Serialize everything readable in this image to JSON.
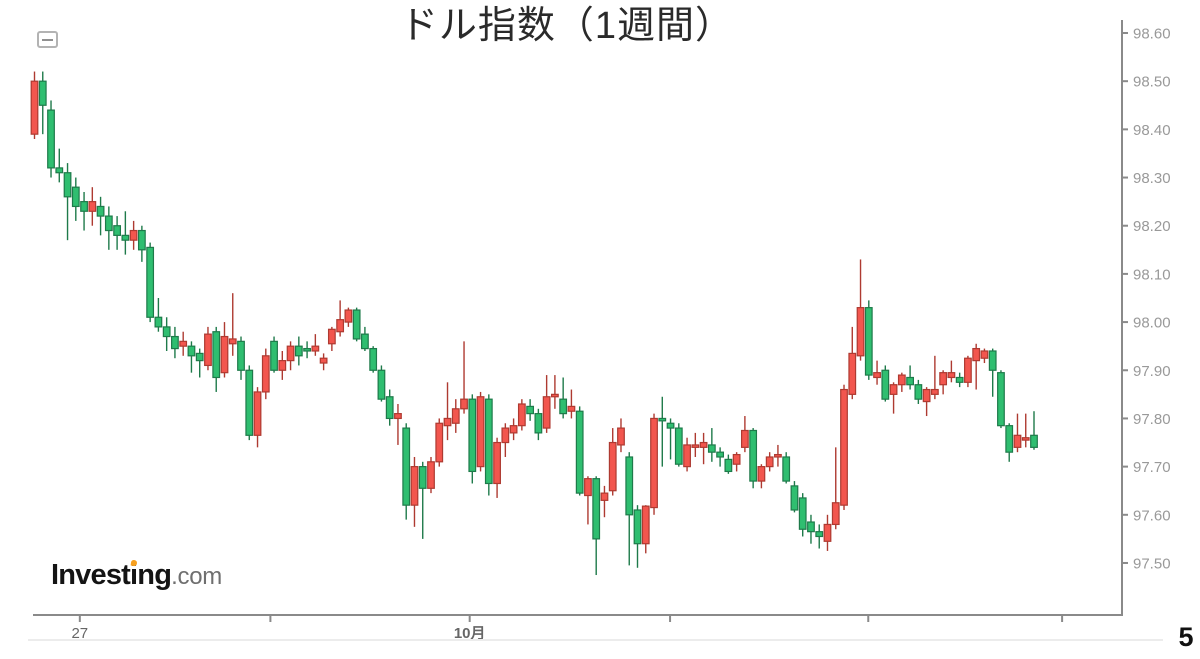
{
  "header": {
    "title": "ドル指数（1週間）"
  },
  "icons": {
    "collapse": "minus-icon"
  },
  "branding": {
    "logo": {
      "part1": "Invest",
      "accent_letter": "i",
      "part2": "ng",
      "tld": ".com"
    },
    "accent_color": "#F7A01E"
  },
  "page": {
    "number": "5"
  },
  "chart_data": {
    "type": "candlestick",
    "title": "ドル指数（1週間）",
    "candle_convention": "red = bullish (close > open), green = bearish (close < open) — Japanese color convention",
    "legend": "none",
    "grid": "off",
    "y_axis": {
      "side": "right",
      "tick_values": [
        98.6,
        98.5,
        98.4,
        98.3,
        98.2,
        98.1,
        98.0,
        97.9,
        97.8,
        97.7,
        97.6,
        97.5
      ],
      "range": [
        97.39,
        98.63
      ]
    },
    "x_axis": {
      "ticks": [
        {
          "pos": 0.043,
          "label": "27",
          "bold": false
        },
        {
          "pos": 0.218,
          "label": "",
          "bold": false
        },
        {
          "pos": 0.401,
          "label": "10月",
          "bold": true
        },
        {
          "pos": 0.585,
          "label": "",
          "bold": false
        },
        {
          "pos": 0.767,
          "label": "",
          "bold": false
        },
        {
          "pos": 0.945,
          "label": "",
          "bold": false
        }
      ]
    },
    "colors": {
      "up_fill": "#F2564E",
      "up_stroke": "#AE3A31",
      "down_fill": "#2FBE70",
      "down_stroke": "#1E7A4A",
      "axis": "#8A8A8A",
      "y_tick_label": "#999999",
      "x_tick_label": "#666666",
      "separator": "#ECECEC"
    },
    "candles_ohlc": [
      [
        98.39,
        98.52,
        98.38,
        98.5
      ],
      [
        98.5,
        98.52,
        98.39,
        98.45
      ],
      [
        98.44,
        98.46,
        98.3,
        98.32
      ],
      [
        98.32,
        98.36,
        98.29,
        98.31
      ],
      [
        98.31,
        98.33,
        98.17,
        98.26
      ],
      [
        98.28,
        98.3,
        98.21,
        98.24
      ],
      [
        98.25,
        98.27,
        98.19,
        98.23
      ],
      [
        98.23,
        98.28,
        98.2,
        98.25
      ],
      [
        98.24,
        98.26,
        98.18,
        98.22
      ],
      [
        98.22,
        98.24,
        98.15,
        98.19
      ],
      [
        98.2,
        98.22,
        98.15,
        98.18
      ],
      [
        98.18,
        98.23,
        98.14,
        98.17
      ],
      [
        98.17,
        98.21,
        98.15,
        98.19
      ],
      [
        98.19,
        98.2,
        98.125,
        98.15
      ],
      [
        98.155,
        98.165,
        98.0,
        98.01
      ],
      [
        98.01,
        98.05,
        97.98,
        97.99
      ],
      [
        97.99,
        98.01,
        97.94,
        97.97
      ],
      [
        97.97,
        97.99,
        97.925,
        97.945
      ],
      [
        97.95,
        97.98,
        97.93,
        97.96
      ],
      [
        97.95,
        97.96,
        97.895,
        97.93
      ],
      [
        97.935,
        97.945,
        97.885,
        97.92
      ],
      [
        97.91,
        97.99,
        97.9,
        97.975
      ],
      [
        97.98,
        97.99,
        97.855,
        97.885
      ],
      [
        97.895,
        98.0,
        97.885,
        97.97
      ],
      [
        97.955,
        98.06,
        97.93,
        97.965
      ],
      [
        97.96,
        97.97,
        97.88,
        97.9
      ],
      [
        97.9,
        97.91,
        97.755,
        97.765
      ],
      [
        97.765,
        97.865,
        97.74,
        97.855
      ],
      [
        97.855,
        97.945,
        97.84,
        97.93
      ],
      [
        97.96,
        97.97,
        97.895,
        97.9
      ],
      [
        97.9,
        97.94,
        97.88,
        97.92
      ],
      [
        97.92,
        97.96,
        97.9,
        97.95
      ],
      [
        97.95,
        97.97,
        97.91,
        97.93
      ],
      [
        97.945,
        97.96,
        97.925,
        97.94
      ],
      [
        97.94,
        97.975,
        97.93,
        97.95
      ],
      [
        97.915,
        97.935,
        97.9,
        97.925
      ],
      [
        97.955,
        97.99,
        97.94,
        97.985
      ],
      [
        97.98,
        98.045,
        97.97,
        98.005
      ],
      [
        98.0,
        98.03,
        97.99,
        98.025
      ],
      [
        98.025,
        98.03,
        97.96,
        97.965
      ],
      [
        97.975,
        97.99,
        97.94,
        97.945
      ],
      [
        97.945,
        97.95,
        97.895,
        97.9
      ],
      [
        97.9,
        97.91,
        97.835,
        97.84
      ],
      [
        97.845,
        97.86,
        97.785,
        97.8
      ],
      [
        97.8,
        97.83,
        97.745,
        97.81
      ],
      [
        97.78,
        97.79,
        97.59,
        97.62
      ],
      [
        97.62,
        97.72,
        97.575,
        97.7
      ],
      [
        97.7,
        97.71,
        97.55,
        97.655
      ],
      [
        97.655,
        97.72,
        97.645,
        97.71
      ],
      [
        97.71,
        97.8,
        97.7,
        97.79
      ],
      [
        97.785,
        97.875,
        97.755,
        97.8
      ],
      [
        97.79,
        97.84,
        97.77,
        97.82
      ],
      [
        97.82,
        97.96,
        97.81,
        97.84
      ],
      [
        97.84,
        97.85,
        97.665,
        97.69
      ],
      [
        97.7,
        97.855,
        97.69,
        97.845
      ],
      [
        97.84,
        97.85,
        97.64,
        97.665
      ],
      [
        97.665,
        97.76,
        97.635,
        97.75
      ],
      [
        97.75,
        97.79,
        97.72,
        97.78
      ],
      [
        97.77,
        97.8,
        97.755,
        97.785
      ],
      [
        97.785,
        97.84,
        97.775,
        97.83
      ],
      [
        97.825,
        97.84,
        97.795,
        97.81
      ],
      [
        97.81,
        97.82,
        97.755,
        97.77
      ],
      [
        97.78,
        97.89,
        97.77,
        97.845
      ],
      [
        97.845,
        97.89,
        97.82,
        97.85
      ],
      [
        97.84,
        97.885,
        97.8,
        97.81
      ],
      [
        97.815,
        97.86,
        97.8,
        97.825
      ],
      [
        97.815,
        97.825,
        97.64,
        97.645
      ],
      [
        97.64,
        97.68,
        97.58,
        97.675
      ],
      [
        97.675,
        97.68,
        97.475,
        97.55
      ],
      [
        97.63,
        97.66,
        97.595,
        97.645
      ],
      [
        97.65,
        97.78,
        97.64,
        97.75
      ],
      [
        97.745,
        97.8,
        97.73,
        97.78
      ],
      [
        97.72,
        97.73,
        97.495,
        97.6
      ],
      [
        97.61,
        97.62,
        97.49,
        97.54
      ],
      [
        97.54,
        97.62,
        97.52,
        97.618
      ],
      [
        97.615,
        97.81,
        97.6,
        97.8
      ],
      [
        97.8,
        97.845,
        97.7,
        97.795
      ],
      [
        97.79,
        97.8,
        97.715,
        97.78
      ],
      [
        97.78,
        97.79,
        97.7,
        97.705
      ],
      [
        97.7,
        97.76,
        97.69,
        97.745
      ],
      [
        97.74,
        97.77,
        97.72,
        97.745
      ],
      [
        97.74,
        97.77,
        97.705,
        97.75
      ],
      [
        97.745,
        97.78,
        97.71,
        97.73
      ],
      [
        97.73,
        97.74,
        97.7,
        97.72
      ],
      [
        97.715,
        97.725,
        97.685,
        97.69
      ],
      [
        97.705,
        97.73,
        97.69,
        97.725
      ],
      [
        97.74,
        97.805,
        97.73,
        97.775
      ],
      [
        97.775,
        97.78,
        97.655,
        97.67
      ],
      [
        97.67,
        97.705,
        97.655,
        97.7
      ],
      [
        97.7,
        97.73,
        97.69,
        97.72
      ],
      [
        97.72,
        97.745,
        97.7,
        97.725
      ],
      [
        97.72,
        97.73,
        97.665,
        97.67
      ],
      [
        97.66,
        97.67,
        97.605,
        97.61
      ],
      [
        97.635,
        97.645,
        97.555,
        97.57
      ],
      [
        97.585,
        97.6,
        97.54,
        97.565
      ],
      [
        97.565,
        97.58,
        97.53,
        97.555
      ],
      [
        97.545,
        97.6,
        97.525,
        97.58
      ],
      [
        97.58,
        97.74,
        97.57,
        97.625
      ],
      [
        97.62,
        97.87,
        97.61,
        97.86
      ],
      [
        97.85,
        97.99,
        97.84,
        97.935
      ],
      [
        97.93,
        98.13,
        97.92,
        98.03
      ],
      [
        98.03,
        98.045,
        97.88,
        97.89
      ],
      [
        97.885,
        97.92,
        97.87,
        97.895
      ],
      [
        97.9,
        97.91,
        97.835,
        97.84
      ],
      [
        97.85,
        97.875,
        97.81,
        97.87
      ],
      [
        97.87,
        97.895,
        97.855,
        97.89
      ],
      [
        97.885,
        97.91,
        97.86,
        97.87
      ],
      [
        97.87,
        97.88,
        97.83,
        97.84
      ],
      [
        97.835,
        97.865,
        97.805,
        97.86
      ],
      [
        97.85,
        97.93,
        97.84,
        97.86
      ],
      [
        97.87,
        97.9,
        97.85,
        97.895
      ],
      [
        97.885,
        97.92,
        97.875,
        97.895
      ],
      [
        97.885,
        97.895,
        97.865,
        97.875
      ],
      [
        97.875,
        97.93,
        97.865,
        97.925
      ],
      [
        97.92,
        97.955,
        97.86,
        97.945
      ],
      [
        97.925,
        97.945,
        97.915,
        97.94
      ],
      [
        97.94,
        97.945,
        97.845,
        97.9
      ],
      [
        97.895,
        97.9,
        97.78,
        97.785
      ],
      [
        97.785,
        97.79,
        97.71,
        97.73
      ],
      [
        97.74,
        97.81,
        97.73,
        97.765
      ],
      [
        97.755,
        97.81,
        97.74,
        97.76
      ],
      [
        97.765,
        97.815,
        97.735,
        97.74
      ]
    ]
  }
}
